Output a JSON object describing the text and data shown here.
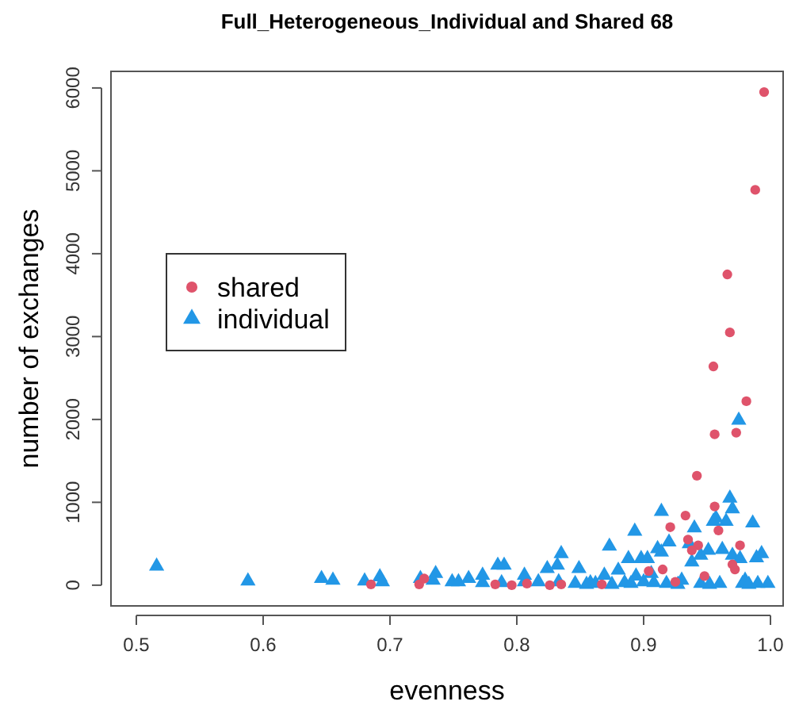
{
  "chart_data": {
    "type": "scatter",
    "title": "Full_Heterogeneous_Individual and Shared 68",
    "xlabel": "evenness",
    "ylabel": "number of exchanges",
    "xlim": [
      0.48,
      1.01
    ],
    "xticks": [
      0.5,
      0.6,
      0.7,
      0.8,
      0.9,
      {
        "value": 1.0,
        "label": "1.0"
      }
    ],
    "ylim": [
      -250,
      6200
    ],
    "yticks": [
      0,
      1000,
      2000,
      3000,
      4000,
      5000,
      6000
    ],
    "grid": false,
    "legend": "left",
    "series": [
      {
        "name": "shared",
        "color": "#df536b",
        "marker": "circle",
        "x": [
          0.995,
          0.988,
          0.966,
          0.968,
          0.955,
          0.981,
          0.956,
          0.973,
          0.942,
          0.956,
          0.921,
          0.933,
          0.959,
          0.976,
          0.935,
          0.943,
          0.938,
          0.915,
          0.972,
          0.97,
          0.948,
          0.685,
          0.723,
          0.727,
          0.783,
          0.796,
          0.826,
          0.808,
          0.835,
          0.904,
          0.867,
          0.925
        ],
        "values": [
          5950,
          4770,
          3750,
          3050,
          2640,
          2220,
          1820,
          1840,
          1320,
          950,
          700,
          840,
          660,
          480,
          550,
          480,
          420,
          190,
          190,
          250,
          110,
          10,
          10,
          80,
          10,
          0,
          0,
          20,
          10,
          170,
          10,
          40
        ]
      },
      {
        "name": "individual",
        "color": "#2297e6",
        "marker": "triangle",
        "x": [
          0.516,
          0.588,
          0.646,
          0.655,
          0.68,
          0.692,
          0.694,
          0.724,
          0.736,
          0.734,
          0.749,
          0.754,
          0.762,
          0.773,
          0.773,
          0.785,
          0.79,
          0.788,
          0.806,
          0.806,
          0.817,
          0.824,
          0.832,
          0.835,
          0.833,
          0.846,
          0.849,
          0.858,
          0.869,
          0.873,
          0.88,
          0.888,
          0.893,
          0.898,
          0.903,
          0.894,
          0.9,
          0.906,
          0.911,
          0.914,
          0.914,
          0.92,
          0.93,
          0.938,
          0.936,
          0.94,
          0.945,
          0.951,
          0.955,
          0.957,
          0.962,
          0.965,
          0.968,
          0.97,
          0.97,
          0.975,
          0.976,
          0.98,
          0.986,
          0.989,
          0.993,
          0.998,
          0.855,
          0.862,
          0.875,
          0.885,
          0.89,
          0.908,
          0.918,
          0.927,
          0.945,
          0.952,
          0.96,
          0.978,
          0.983,
          0.99
        ],
        "values": [
          230,
          50,
          80,
          60,
          50,
          100,
          40,
          80,
          140,
          60,
          40,
          40,
          80,
          120,
          30,
          240,
          240,
          30,
          120,
          40,
          40,
          200,
          240,
          380,
          40,
          20,
          200,
          30,
          120,
          470,
          180,
          320,
          650,
          320,
          320,
          110,
          40,
          140,
          440,
          890,
          400,
          520,
          60,
          280,
          500,
          690,
          360,
          420,
          770,
          810,
          430,
          770,
          1050,
          920,
          360,
          1990,
          320,
          60,
          750,
          330,
          380,
          20,
          10,
          20,
          10,
          30,
          20,
          30,
          20,
          10,
          20,
          10,
          20,
          20,
          10,
          20
        ]
      }
    ]
  }
}
